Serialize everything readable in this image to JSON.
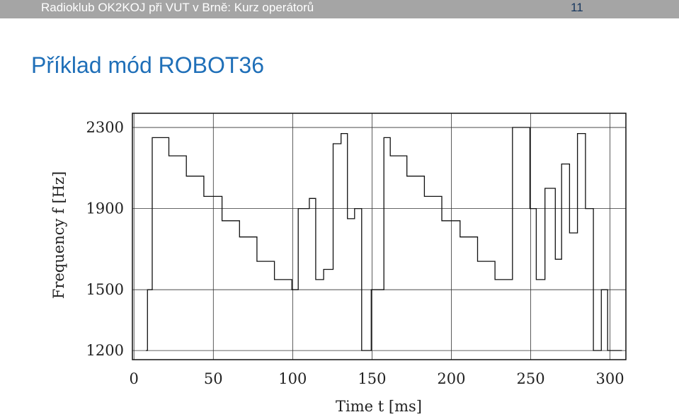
{
  "header": {
    "text": "Radioklub OK2KOJ při VUT v Brně: Kurz operátorů",
    "page_number": "11"
  },
  "slide": {
    "title": "Příklad mód ROBOT36"
  },
  "colors": {
    "header_bar": "#a5a5a5",
    "title": "#1f6fb8",
    "line": "#111111",
    "grid": "#333333"
  },
  "chart_data": {
    "type": "line",
    "xlabel": "Time t [ms]",
    "ylabel": "Frequency f [Hz]",
    "xlim": [
      -1,
      310
    ],
    "ylim": [
      1155,
      2370
    ],
    "grid": true,
    "x_ticks": [
      0,
      50,
      100,
      150,
      200,
      250,
      300
    ],
    "x_tick_labels": [
      "0",
      "50",
      "100",
      "150",
      "200",
      "250",
      "300"
    ],
    "y_ticks": [
      1200,
      1500,
      1900,
      2300
    ],
    "y_tick_labels": [
      "1200",
      "1500",
      "1900",
      "2300"
    ],
    "series": [
      {
        "x": [
          7.5,
          8.5,
          8.5,
          11.5,
          11.5,
          22,
          22,
          33,
          33,
          44,
          44,
          55.5,
          55.5,
          66.5,
          66.5,
          77.5,
          77.5,
          88.5,
          88.5,
          99.5,
          99.5,
          103.5,
          103.5,
          110.5,
          110.5,
          114.5,
          114.5,
          119.5,
          119.5,
          125.5,
          125.5,
          130.5,
          130.5,
          134.5,
          134.5,
          139,
          139,
          143.5,
          143.5,
          149.5,
          149.5,
          157.5,
          157.5,
          161.5,
          161.5,
          172,
          172,
          183,
          183,
          194,
          194,
          205.5,
          205.5,
          216.5,
          216.5,
          227.5,
          227.5,
          238.5,
          238.5,
          249.5,
          249.5,
          253.5,
          253.5,
          259,
          259,
          265.5,
          265.5,
          269.5,
          269.5,
          274.5,
          274.5,
          279.5,
          279.5,
          284.5,
          284.5,
          289.5,
          289.5,
          294.5,
          294.5,
          298.5,
          298.5,
          307.5,
          307.5
        ],
        "y": [
          1200,
          1200,
          1500,
          1500,
          2250,
          2250,
          2160,
          2160,
          2060,
          2060,
          1960,
          1960,
          1840,
          1840,
          1760,
          1760,
          1640,
          1640,
          1550,
          1550,
          1500,
          1500,
          1900,
          1900,
          1950,
          1950,
          1550,
          1550,
          1600,
          1600,
          2220,
          2220,
          2270,
          2270,
          1850,
          1850,
          1900,
          1900,
          1200,
          1200,
          1500,
          1500,
          2250,
          2250,
          2160,
          2160,
          2060,
          2060,
          1960,
          1960,
          1840,
          1840,
          1760,
          1760,
          1640,
          1640,
          1550,
          1550,
          2300,
          2300,
          1900,
          1900,
          1550,
          1550,
          2000,
          2000,
          1650,
          1650,
          2120,
          2120,
          1780,
          1780,
          2270,
          2270,
          1900,
          1900,
          1200,
          1200,
          1500,
          1500,
          1200,
          1200,
          1200
        ]
      }
    ]
  }
}
